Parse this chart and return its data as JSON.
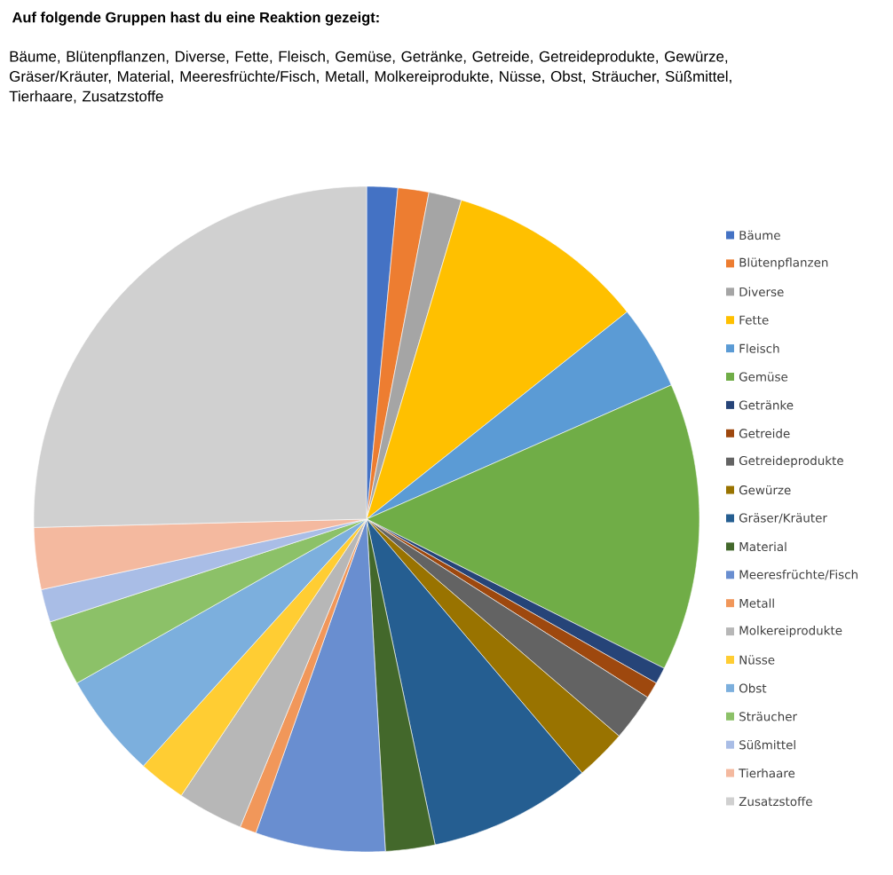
{
  "chart_data": {
    "type": "pie",
    "title": "Auf folgende Gruppen hast du eine Reaktion gezeigt:",
    "subtitle": "Bäume, Blütenpflanzen, Diverse, Fette, Fleisch, Gemüse, Getränke, Getreide, Getreideprodukte, Gewürze, Gräser/Kräuter, Material, Meeresfrüchte/Fisch, Metall, Molkereiprodukte, Nüsse, Obst, Sträucher, Süßmittel, Tierhaare, Zusatzstoffe",
    "categories": [
      "Bäume",
      "Blütenpflanzen",
      "Diverse",
      "Fette",
      "Fleisch",
      "Gemüse",
      "Getränke",
      "Getreide",
      "Getreideprodukte",
      "Gewürze",
      "Gräser/Kräuter",
      "Material",
      "Meeresfrüchte/Fisch",
      "Metall",
      "Molkereiprodukte",
      "Nüsse",
      "Obst",
      "Sträucher",
      "Süßmittel",
      "Tierhaare",
      "Zusatzstoffe"
    ],
    "values": [
      1.5,
      1.5,
      1.6,
      9.7,
      4.1,
      14.0,
      0.8,
      0.8,
      2.3,
      2.5,
      7.9,
      2.4,
      6.3,
      0.8,
      3.2,
      2.3,
      5.1,
      3.2,
      1.6,
      3.0,
      25.4
    ],
    "colors": [
      "#4472c4",
      "#ed7d31",
      "#a5a5a5",
      "#ffc000",
      "#5b9bd5",
      "#70ad47",
      "#264478",
      "#9e480e",
      "#636363",
      "#997300",
      "#255e91",
      "#43682b",
      "#698ed0",
      "#f1975a",
      "#b7b7b7",
      "#ffcd33",
      "#7cafdd",
      "#8cc168",
      "#a9bde6",
      "#f4b99f",
      "#d0d0d0"
    ],
    "legend": "right"
  }
}
